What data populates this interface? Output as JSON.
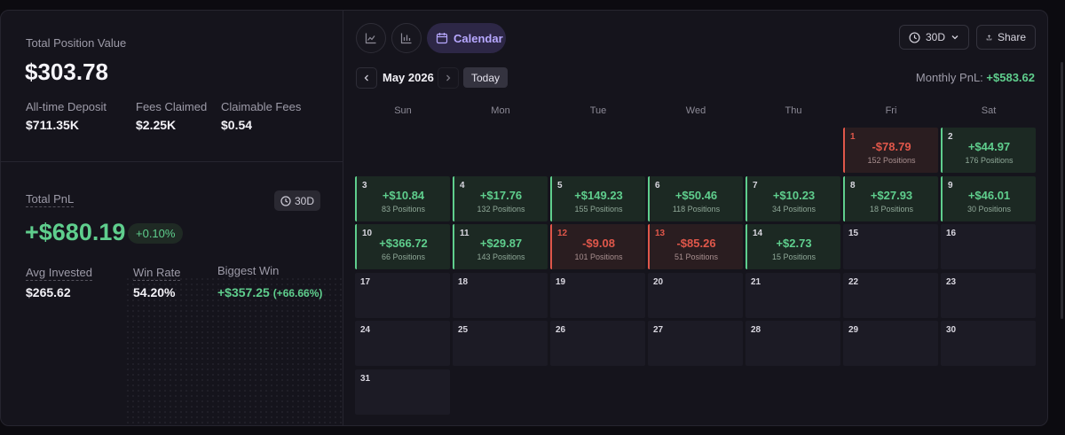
{
  "summary": {
    "total_position_value_label": "Total Position Value",
    "total_position_value": "$303.78",
    "all_time_deposit_label": "All-time Deposit",
    "all_time_deposit": "$711.35K",
    "fees_claimed_label": "Fees Claimed",
    "fees_claimed": "$2.25K",
    "claimable_fees_label": "Claimable Fees",
    "claimable_fees": "$0.54"
  },
  "pnl": {
    "total_pnl_label": "Total PnL",
    "range_badge": "30D",
    "total_pnl": "+$680.19",
    "total_pnl_pct": "+0.10%",
    "avg_invested_label": "Avg Invested",
    "avg_invested": "$265.62",
    "win_rate_label": "Win Rate",
    "win_rate": "54.20%",
    "biggest_win_label": "Biggest Win",
    "biggest_win": "+$357.25",
    "biggest_win_pct": "(+66.66%)"
  },
  "toolbar": {
    "line_chart_icon": "line-chart-icon",
    "bar_chart_icon": "bar-chart-icon",
    "calendar_label": "Calendar",
    "range_select": "30D",
    "share_label": "Share"
  },
  "calendar": {
    "month_label": "May 2026",
    "today_label": "Today",
    "monthly_pnl_label": "Monthly PnL:",
    "monthly_pnl_value": "+$583.62",
    "weekdays": [
      "Sun",
      "Mon",
      "Tue",
      "Wed",
      "Thu",
      "Fri",
      "Sat"
    ],
    "first_weekday_index": 5,
    "days_in_month": 31,
    "days": [
      {
        "day": "1",
        "amount": "-$78.79",
        "positions": "152 Positions",
        "status": "neg"
      },
      {
        "day": "2",
        "amount": "+$44.97",
        "positions": "176 Positions",
        "status": "pos"
      },
      {
        "day": "3",
        "amount": "+$10.84",
        "positions": "83 Positions",
        "status": "pos"
      },
      {
        "day": "4",
        "amount": "+$17.76",
        "positions": "132 Positions",
        "status": "pos"
      },
      {
        "day": "5",
        "amount": "+$149.23",
        "positions": "155 Positions",
        "status": "pos"
      },
      {
        "day": "6",
        "amount": "+$50.46",
        "positions": "118 Positions",
        "status": "pos"
      },
      {
        "day": "7",
        "amount": "+$10.23",
        "positions": "34 Positions",
        "status": "pos"
      },
      {
        "day": "8",
        "amount": "+$27.93",
        "positions": "18 Positions",
        "status": "pos"
      },
      {
        "day": "9",
        "amount": "+$46.01",
        "positions": "30 Positions",
        "status": "pos"
      },
      {
        "day": "10",
        "amount": "+$366.72",
        "positions": "66 Positions",
        "status": "pos"
      },
      {
        "day": "11",
        "amount": "+$29.87",
        "positions": "143 Positions",
        "status": "pos"
      },
      {
        "day": "12",
        "amount": "-$9.08",
        "positions": "101 Positions",
        "status": "neg"
      },
      {
        "day": "13",
        "amount": "-$85.26",
        "positions": "51 Positions",
        "status": "neg"
      },
      {
        "day": "14",
        "amount": "+$2.73",
        "positions": "15 Positions",
        "status": "pos"
      },
      {
        "day": "15"
      },
      {
        "day": "16"
      },
      {
        "day": "17"
      },
      {
        "day": "18"
      },
      {
        "day": "19"
      },
      {
        "day": "20"
      },
      {
        "day": "21"
      },
      {
        "day": "22"
      },
      {
        "day": "23"
      },
      {
        "day": "24"
      },
      {
        "day": "25"
      },
      {
        "day": "26"
      },
      {
        "day": "27"
      },
      {
        "day": "28"
      },
      {
        "day": "29"
      },
      {
        "day": "30"
      },
      {
        "day": "31"
      }
    ]
  },
  "colors": {
    "positive": "#5fce8d",
    "negative": "#e0574a",
    "accent": "#b7a8ff"
  }
}
